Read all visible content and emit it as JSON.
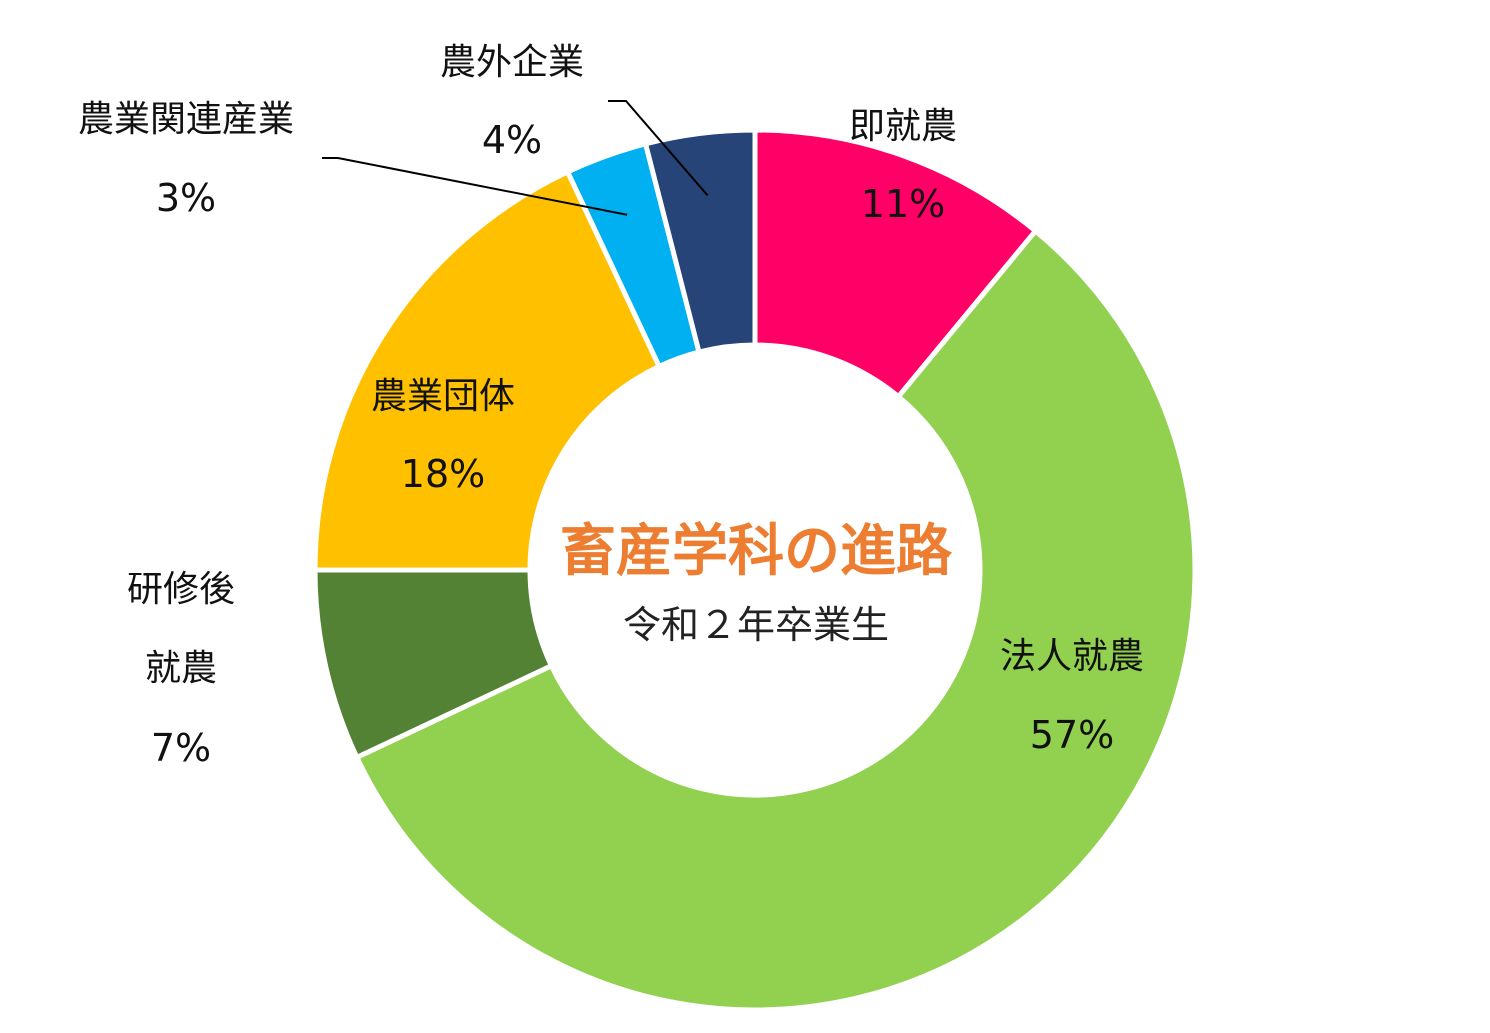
{
  "chart_data": {
    "type": "pie",
    "center_title": "畜産学科の進路",
    "center_subtitle": "令和２年卒業生",
    "slices": [
      {
        "name": "即就農",
        "value": 11,
        "label": "11%",
        "color": "#FF0066"
      },
      {
        "name": "法人就農",
        "value": 57,
        "label": "57%",
        "color": "#92D050"
      },
      {
        "name_lines": [
          "研修後",
          "就農"
        ],
        "value": 7,
        "label": "7%",
        "color": "#548235"
      },
      {
        "name": "農業団体",
        "value": 18,
        "label": "18%",
        "color": "#FFC000"
      },
      {
        "name": "農業関連産業",
        "value": 3,
        "label": "3%",
        "color": "#00B0F0"
      },
      {
        "name": "農外企業",
        "value": 4,
        "label": "4%",
        "color": "#264478"
      }
    ],
    "title_color": "#ED7D31"
  }
}
